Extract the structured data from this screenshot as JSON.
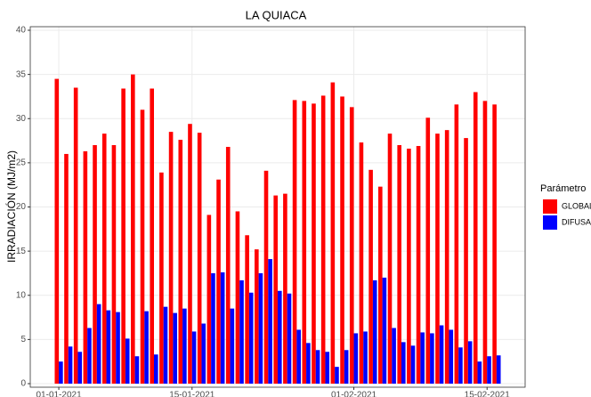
{
  "chart_data": {
    "type": "bar",
    "title": "LA QUIACA",
    "y_label": "IRRADIACIÓN (MJ/m2)",
    "legend_title": "Parámetro",
    "x": [
      "01-01-2021",
      "02-01-2021",
      "03-01-2021",
      "04-01-2021",
      "05-01-2021",
      "06-01-2021",
      "07-01-2021",
      "08-01-2021",
      "09-01-2021",
      "10-01-2021",
      "11-01-2021",
      "12-01-2021",
      "13-01-2021",
      "14-01-2021",
      "15-01-2021",
      "16-01-2021",
      "17-01-2021",
      "18-01-2021",
      "19-01-2021",
      "20-01-2021",
      "21-01-2021",
      "22-01-2021",
      "23-01-2021",
      "24-01-2021",
      "25-01-2021",
      "26-01-2021",
      "27-01-2021",
      "28-01-2021",
      "29-01-2021",
      "30-01-2021",
      "31-01-2021",
      "01-02-2021",
      "02-02-2021",
      "03-02-2021",
      "04-02-2021",
      "05-02-2021",
      "06-02-2021",
      "07-02-2021",
      "08-02-2021",
      "09-02-2021",
      "10-02-2021",
      "11-02-2021",
      "12-02-2021",
      "13-02-2021",
      "14-02-2021",
      "15-02-2021",
      "16-02-2021"
    ],
    "series": [
      {
        "name": "GLOBAL",
        "color": "#ff0000",
        "values": [
          34.5,
          26,
          33.5,
          26.3,
          27,
          28.3,
          27,
          33.4,
          35,
          31,
          33.4,
          23.9,
          28.5,
          27.6,
          29.4,
          28.4,
          19.1,
          23.1,
          26.8,
          19.5,
          16.8,
          15.2,
          24.1,
          21.3,
          21.5,
          32.1,
          32,
          31.7,
          32.6,
          34.1,
          32.5,
          31.3,
          27.3,
          24.2,
          22.3,
          28.3,
          27,
          26.6,
          26.9,
          30.1,
          28.3,
          28.7,
          31.6,
          27.8,
          33,
          32,
          31.6
        ]
      },
      {
        "name": "DIFUSA",
        "color": "#0000ff",
        "values": [
          2.5,
          4.2,
          3.6,
          6.3,
          9,
          8.3,
          8.1,
          5.1,
          3.1,
          8.2,
          3.3,
          8.7,
          8,
          8.5,
          5.9,
          6.8,
          12.5,
          12.6,
          8.5,
          11.7,
          10.3,
          12.5,
          14.1,
          10.5,
          10.2,
          6.1,
          4.6,
          3.8,
          3.6,
          1.9,
          3.8,
          5.7,
          5.9,
          11.7,
          12,
          6.3,
          4.7,
          4.3,
          5.8,
          5.7,
          6.6,
          6.1,
          4.1,
          4.8,
          2.5,
          3.1,
          3.2
        ]
      }
    ],
    "xlim": [
      "29-12-2020",
      "19-02-2021"
    ],
    "xticks": [
      "01-01-2021",
      "15-01-2021",
      "01-02-2021",
      "15-02-2021"
    ],
    "ylim": [
      0,
      40
    ],
    "yticks": [
      0,
      5,
      10,
      15,
      20,
      25,
      30,
      35,
      40
    ],
    "grid": true
  }
}
